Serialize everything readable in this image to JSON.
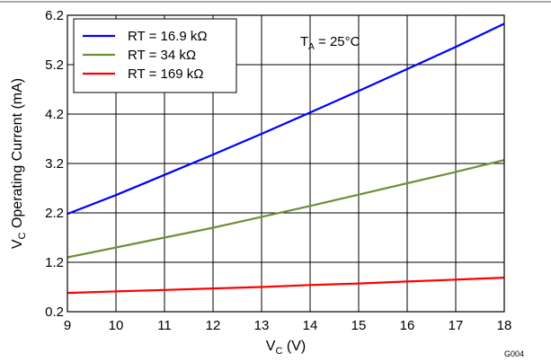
{
  "chart_data": {
    "type": "line",
    "title": "",
    "xlabel": "V",
    "xlabel_sub": "C",
    "xlabel_unit": " (V)",
    "ylabel": "V",
    "ylabel_sub": "C",
    "ylabel_rest": " Operating Current (mA)",
    "xlim": [
      9,
      18
    ],
    "ylim": [
      0.2,
      6.2
    ],
    "xticks": [
      "9",
      "10",
      "11",
      "12",
      "13",
      "14",
      "15",
      "16",
      "17",
      "18"
    ],
    "yticks": [
      "0.2",
      "1.2",
      "2.2",
      "3.2",
      "4.2",
      "5.2",
      "6.2"
    ],
    "grid": true,
    "legend_position": "top-left",
    "annotation": {
      "prefix": "T",
      "sub": "A",
      "suffix": " = 25°C"
    },
    "figure_id": "G004",
    "series": [
      {
        "name": "RT = 16.9 kΩ",
        "color": "#0000ff",
        "x": [
          9,
          10,
          11,
          12,
          13,
          14,
          15,
          16,
          17,
          18
        ],
        "values": [
          2.18,
          2.56,
          2.97,
          3.38,
          3.8,
          4.23,
          4.67,
          5.11,
          5.56,
          6.03
        ]
      },
      {
        "name": "RT = 34 kΩ",
        "color": "#6f8f3a",
        "x": [
          9,
          10,
          11,
          12,
          13,
          14,
          15,
          16,
          17,
          18
        ],
        "values": [
          1.3,
          1.5,
          1.7,
          1.9,
          2.12,
          2.34,
          2.57,
          2.8,
          3.03,
          3.27
        ]
      },
      {
        "name": "RT = 169 kΩ",
        "color": "#ff0000",
        "x": [
          9,
          10,
          11,
          12,
          13,
          14,
          15,
          16,
          17,
          18
        ],
        "values": [
          0.58,
          0.61,
          0.64,
          0.67,
          0.7,
          0.74,
          0.77,
          0.81,
          0.85,
          0.89
        ]
      }
    ]
  }
}
